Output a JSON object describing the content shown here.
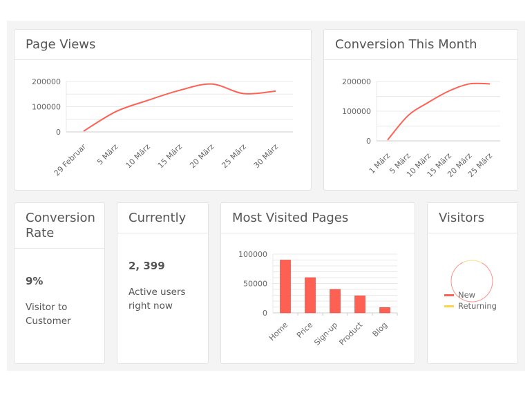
{
  "page_views": {
    "title": "Page Views"
  },
  "conversion_month": {
    "title": "Conversion This Month"
  },
  "conversion_rate": {
    "title": "Conversion Rate",
    "value": "9%",
    "label": "Visitor to Customer"
  },
  "currently": {
    "title": "Currently",
    "value": "2, 399",
    "label": "Active users right now"
  },
  "most_visited": {
    "title": "Most Visited Pages"
  },
  "visitors": {
    "title": "Visitors",
    "legend": [
      {
        "label": "New",
        "color": "#ff6054"
      },
      {
        "label": "Returning",
        "color": "#ffd24d"
      }
    ]
  },
  "chart_data": [
    {
      "type": "line",
      "color": "#ff6054",
      "categories": [
        "29 Februar",
        "5 März",
        "10 März",
        "15 März",
        "20 März",
        "25 März",
        "30 März"
      ],
      "values": [
        3000,
        80000,
        125000,
        165000,
        190000,
        152000,
        162000
      ],
      "yticks": [
        0,
        100000,
        200000
      ],
      "ylim": [
        0,
        200000
      ],
      "grid": true
    },
    {
      "type": "line",
      "color": "#ff6054",
      "categories": [
        "1 März",
        "5 März",
        "10 März",
        "15 März",
        "20 März",
        "25 März"
      ],
      "values": [
        3000,
        85000,
        130000,
        168000,
        192000,
        192000
      ],
      "yticks": [
        0,
        100000,
        200000
      ],
      "ylim": [
        0,
        200000
      ],
      "grid": true
    },
    {
      "type": "bar",
      "color": "#ff6054",
      "categories": [
        "Home",
        "Price",
        "Sign-up",
        "Product",
        "Blog"
      ],
      "values": [
        90000,
        60000,
        40000,
        29000,
        9000
      ],
      "yticks": [
        0,
        50000,
        100000
      ],
      "ylim": [
        0,
        100000
      ],
      "grid": true
    },
    {
      "type": "pie",
      "series": [
        {
          "name": "New",
          "value": 85,
          "color": "#ff6054"
        },
        {
          "name": "Returning",
          "value": 15,
          "color": "#ffd24d"
        }
      ]
    }
  ]
}
